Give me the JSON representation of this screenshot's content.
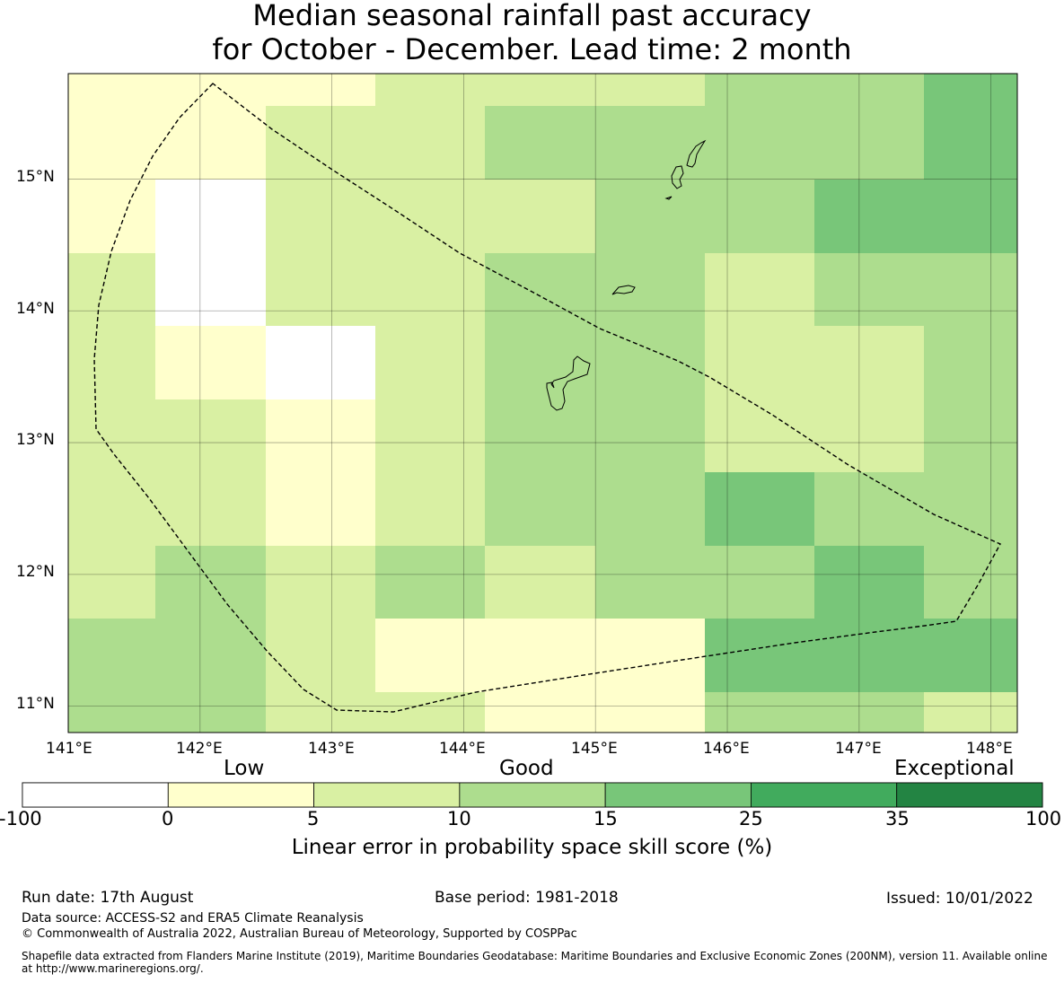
{
  "title_line1": "Median seasonal rainfall past accuracy",
  "title_line2": "for October - December. Lead time: 2 month",
  "map": {
    "lon_range": [
      141.0,
      148.2
    ],
    "lat_range": [
      10.8,
      15.8
    ],
    "lon_ticks": [
      "141°E",
      "142°E",
      "143°E",
      "144°E",
      "145°E",
      "146°E",
      "147°E",
      "148°E"
    ],
    "lat_ticks": [
      "15°N",
      "14°N",
      "13°N",
      "12°N",
      "11°N"
    ],
    "grid_lines": true,
    "cell_color_classes": [
      "#ffffff",
      "#ffffcc",
      "#d9f0a3",
      "#addd8e",
      "#78c679",
      "#41ab5d",
      "#238443"
    ]
  },
  "colorbar": {
    "category_labels": [
      "Low",
      "Good",
      "Exceptional"
    ],
    "tick_labels": [
      "-100",
      "0",
      "5",
      "10",
      "15",
      "25",
      "35",
      "100"
    ],
    "colors": [
      "#ffffff",
      "#ffffcc",
      "#d9f0a3",
      "#addd8e",
      "#78c679",
      "#41ab5d",
      "#238443"
    ],
    "axis_label": "Linear error in probability space skill score (%)"
  },
  "footer": {
    "run_date": "Run date: 17th August",
    "base_period": "Base period: 1981-2018",
    "issued": "Issued: 10/01/2022",
    "data_source": "Data source: ACCESS-S2 and ERA5 Climate Reanalysis",
    "copyright": "© Commonwealth of Australia 2022, Australian Bureau of Meteorology, Supported by COSPPac",
    "shapefile_line1": "Shapefile data extracted from Flanders Marine Institute (2019), Maritime Boundaries Geodatabase: Maritime Boundaries and Exclusive Economic Zones (200NM), version 11. Available online",
    "shapefile_line2": "at http://www.marineregions.org/."
  }
}
